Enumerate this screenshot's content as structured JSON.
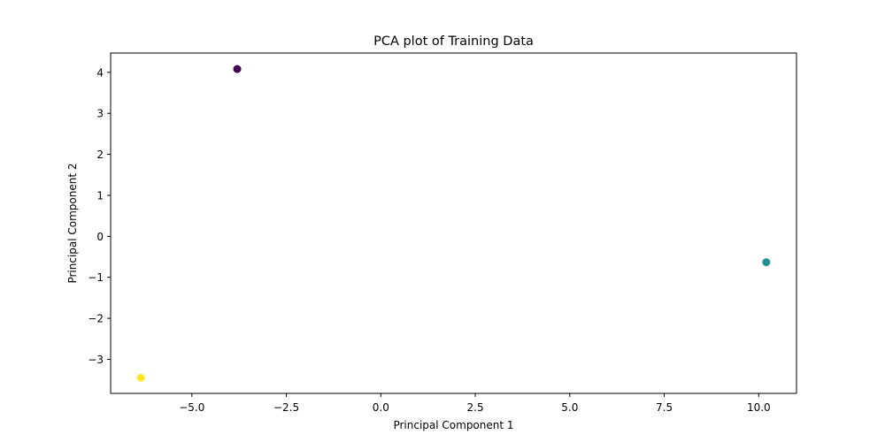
{
  "chart_data": {
    "type": "scatter",
    "title": "PCA plot of Training Data",
    "xlabel": "Principal Component 1",
    "ylabel": "Principal Component 2",
    "xlim": [
      -7.15,
      11.0
    ],
    "ylim": [
      -3.83,
      4.47
    ],
    "xticks": [
      -5.0,
      -2.5,
      0.0,
      2.5,
      5.0,
      7.5,
      10.0
    ],
    "xtick_labels": [
      "−5.0",
      "−2.5",
      "0.0",
      "2.5",
      "5.0",
      "7.5",
      "10.0"
    ],
    "yticks": [
      -3,
      -2,
      -1,
      0,
      1,
      2,
      3,
      4
    ],
    "ytick_labels": [
      "−3",
      "−2",
      "−1",
      "0",
      "1",
      "2",
      "3",
      "4"
    ],
    "grid": false,
    "points": [
      {
        "x": -3.8,
        "y": 4.08,
        "color": "#440154"
      },
      {
        "x": 10.2,
        "y": -0.63,
        "color": "#21918c"
      },
      {
        "x": -6.35,
        "y": -3.45,
        "color": "#fde725"
      }
    ]
  }
}
